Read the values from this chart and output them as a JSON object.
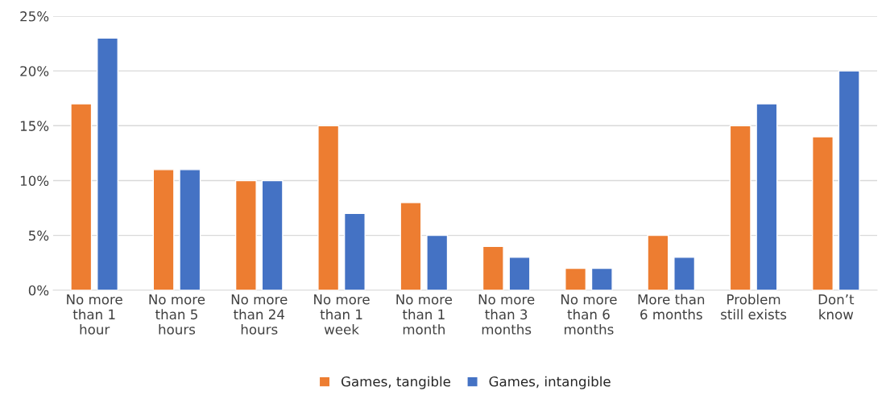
{
  "chart_data": {
    "type": "bar",
    "categories": [
      "No more\nthan 1\nhour",
      "No more\nthan 5\nhours",
      "No more\nthan 24\nhours",
      "No more\nthan 1\nweek",
      "No more\nthan 1\nmonth",
      "No more\nthan 3\nmonths",
      "No more\nthan 6\nmonths",
      "More than\n6 months",
      "Problem\nstill exists",
      "Don’t\nknow"
    ],
    "series": [
      {
        "name": "Games, tangible",
        "color": "#ed7d31",
        "values": [
          17,
          11,
          10,
          15,
          8,
          4,
          2,
          5,
          15,
          14
        ]
      },
      {
        "name": "Games, intangible",
        "color": "#4472c4",
        "values": [
          23,
          11,
          10,
          7,
          5,
          3,
          2,
          3,
          17,
          20
        ]
      }
    ],
    "ylim": [
      0,
      25
    ],
    "yticks": [
      {
        "value": 0,
        "label": "0%"
      },
      {
        "value": 5,
        "label": "5%"
      },
      {
        "value": 10,
        "label": "10%"
      },
      {
        "value": 15,
        "label": "15%"
      },
      {
        "value": 20,
        "label": "20%"
      },
      {
        "value": 25,
        "label": "25%"
      }
    ],
    "grid": "y",
    "legend": "bottom"
  }
}
